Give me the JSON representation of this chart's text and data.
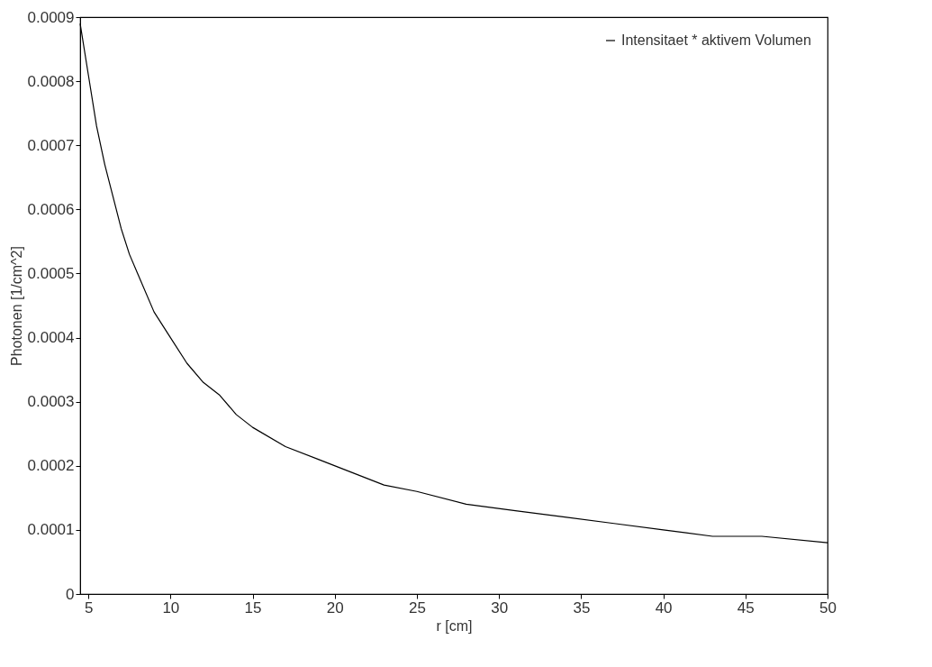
{
  "chart_data": {
    "type": "line",
    "xlabel": "r [cm]",
    "ylabel": "Photonen [1/cm^2]",
    "x": [
      4.5,
      5,
      5.5,
      6,
      6.5,
      7,
      7.5,
      8,
      9,
      10,
      11,
      12,
      13,
      14,
      15,
      17,
      19,
      21,
      23,
      25,
      28,
      31,
      34,
      37,
      40,
      43,
      46,
      50
    ],
    "series": [
      {
        "name": "Intensitaet * aktivem Volumen",
        "color": "#000000",
        "values": [
          0.00089,
          0.00081,
          0.00073,
          0.00067,
          0.00062,
          0.00057,
          0.00053,
          0.0005,
          0.00044,
          0.0004,
          0.00036,
          0.00033,
          0.00031,
          0.00028,
          0.00026,
          0.00023,
          0.00021,
          0.00019,
          0.00017,
          0.00016,
          0.00014,
          0.00013,
          0.00012,
          0.00011,
          0.0001,
          9e-05,
          9e-05,
          8e-05
        ]
      }
    ],
    "xlim": [
      4.5,
      50
    ],
    "xticks": [
      5,
      10,
      15,
      20,
      25,
      30,
      35,
      40,
      45,
      50
    ],
    "ylim": [
      0,
      0.0009
    ],
    "yticks": [
      0,
      0.0001,
      0.0002,
      0.0003,
      0.0004,
      0.0005,
      0.0006,
      0.0007,
      0.0008,
      0.0009
    ],
    "grid": false,
    "legend": "top right",
    "marker": "none",
    "line_style": "solid"
  }
}
